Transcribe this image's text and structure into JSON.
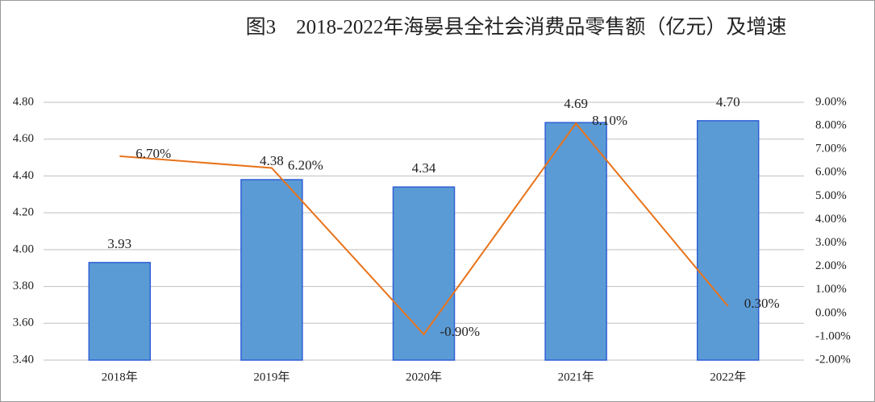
{
  "chart_data": {
    "type": "combo",
    "title": "图3　2018-2022年海晏县全社会消费品零售额（亿元）及增速",
    "categories": [
      "2018年",
      "2019年",
      "2020年",
      "2021年",
      "2022年"
    ],
    "series": [
      {
        "type": "bar",
        "color": "#5b9bd5",
        "values": [
          3.93,
          4.38,
          4.34,
          4.69,
          4.7
        ],
        "value_labels": [
          "3.93",
          "4.38",
          "4.34",
          "4.69",
          "4.70"
        ]
      },
      {
        "type": "line",
        "axis": "y2",
        "color": "#e8731a",
        "values": [
          6.7,
          6.2,
          -0.9,
          8.1,
          0.3
        ],
        "value_labels": [
          "6.70%",
          "6.20%",
          "-0.90%",
          "8.10%",
          "0.30%"
        ]
      }
    ],
    "ylim": [
      3.4,
      4.8
    ],
    "yticks": [
      {
        "value": 3.4,
        "label": "3.40"
      },
      {
        "value": 3.6,
        "label": "3.60"
      },
      {
        "value": 3.8,
        "label": "3.80"
      },
      {
        "value": 4,
        "label": "4.00"
      },
      {
        "value": 4.2,
        "label": "4.20"
      },
      {
        "value": 4.4,
        "label": "4.40"
      },
      {
        "value": 4.6,
        "label": "4.60"
      },
      {
        "value": 4.8,
        "label": "4.80"
      }
    ],
    "y2lim": [
      -2,
      9
    ],
    "y2ticks": [
      {
        "value": -2,
        "label": "-2.00%"
      },
      {
        "value": -1,
        "label": "-1.00%"
      },
      {
        "value": 0,
        "label": "0.00%"
      },
      {
        "value": 1,
        "label": "1.00%"
      },
      {
        "value": 2,
        "label": "2.00%"
      },
      {
        "value": 3,
        "label": "3.00%"
      },
      {
        "value": 4,
        "label": "4.00%"
      },
      {
        "value": 5,
        "label": "5.00%"
      },
      {
        "value": 6,
        "label": "6.00%"
      },
      {
        "value": 7,
        "label": "7.00%"
      },
      {
        "value": 8,
        "label": "8.00%"
      },
      {
        "value": 9,
        "label": "9.00%"
      }
    ],
    "grid": true
  }
}
